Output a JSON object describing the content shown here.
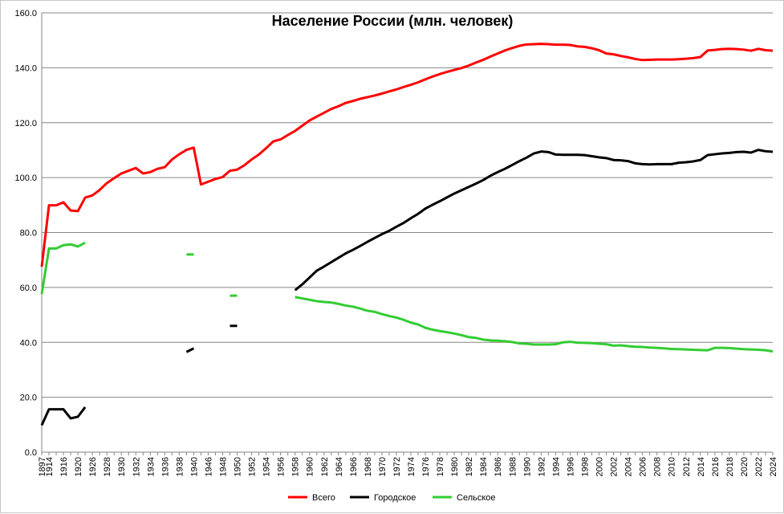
{
  "chart_data": {
    "type": "line",
    "title": "Население России (млн. человек)",
    "xlabel": "",
    "ylabel": "",
    "ylim": [
      0,
      160
    ],
    "y_ticks": [
      "0.0",
      "20.0",
      "40.0",
      "60.0",
      "80.0",
      "100.0",
      "120.0",
      "140.0",
      "160.0"
    ],
    "grid": true,
    "legend": "bottom",
    "categories": [
      "1897",
      "1914",
      "1915",
      "1916",
      "1917",
      "1920",
      "1923",
      "1926",
      "1927",
      "1928",
      "1929",
      "1930",
      "1931",
      "1932",
      "1933",
      "1934",
      "1935",
      "1936",
      "1937",
      "1938",
      "1939",
      "1940",
      "1941",
      "1946",
      "1947",
      "1948",
      "1949",
      "1950",
      "1951",
      "1952",
      "1953",
      "1954",
      "1955",
      "1956",
      "1957",
      "1958",
      "1959",
      "1960",
      "1961",
      "1962",
      "1963",
      "1964",
      "1965",
      "1966",
      "1967",
      "1968",
      "1969",
      "1970",
      "1971",
      "1972",
      "1973",
      "1974",
      "1975",
      "1976",
      "1977",
      "1978",
      "1979",
      "1980",
      "1981",
      "1982",
      "1983",
      "1984",
      "1985",
      "1986",
      "1987",
      "1988",
      "1989",
      "1990",
      "1991",
      "1992",
      "1993",
      "1994",
      "1995",
      "1996",
      "1997",
      "1998",
      "1999",
      "2000",
      "2001",
      "2002",
      "2003",
      "2004",
      "2005",
      "2006",
      "2007",
      "2008",
      "2009",
      "2010",
      "2011",
      "2012",
      "2013",
      "2014",
      "2015",
      "2016",
      "2017",
      "2018",
      "2019",
      "2020",
      "2021",
      "2022",
      "2023",
      "2024"
    ],
    "tick_labels": [
      "1897",
      "1914",
      "1916",
      "1920",
      "1926",
      "1928",
      "1930",
      "1932",
      "1934",
      "1936",
      "1938",
      "1940",
      "1946",
      "1948",
      "1950",
      "1952",
      "1954",
      "1956",
      "1958",
      "1960",
      "1962",
      "1964",
      "1966",
      "1968",
      "1970",
      "1972",
      "1974",
      "1976",
      "1978",
      "1980",
      "1982",
      "1984",
      "1986",
      "1988",
      "1990",
      "1992",
      "1994",
      "1996",
      "1998",
      "2000",
      "2002",
      "2004",
      "2006",
      "2008",
      "2010",
      "2012",
      "2014",
      "2016",
      "2018",
      "2020",
      "2022",
      "2024"
    ],
    "series": [
      {
        "name": "Всего",
        "color": "#ff0000",
        "values": [
          67.5,
          89.9,
          89.9,
          91.0,
          88.0,
          87.8,
          92.7,
          93.5,
          95.5,
          98.0,
          99.8,
          101.5,
          102.5,
          103.5,
          101.5,
          102.0,
          103.2,
          103.8,
          106.6,
          108.5,
          110.1,
          110.9,
          97.5,
          98.5,
          99.5,
          100.2,
          102.5,
          102.9,
          104.5,
          106.6,
          108.4,
          110.7,
          113.2,
          113.9,
          115.5,
          117.0,
          118.9,
          120.8,
          122.2,
          123.6,
          125.0,
          126.0,
          127.2,
          127.9,
          128.7,
          129.3,
          129.9,
          130.6,
          131.4,
          132.1,
          133.0,
          133.8,
          134.7,
          135.8,
          136.8,
          137.7,
          138.5,
          139.2,
          139.9,
          140.8,
          141.9,
          142.9,
          144.1,
          145.2,
          146.3,
          147.2,
          148.0,
          148.5,
          148.6,
          148.7,
          148.6,
          148.4,
          148.4,
          148.3,
          147.8,
          147.6,
          147.1,
          146.4,
          145.2,
          144.9,
          144.3,
          143.8,
          143.2,
          142.8,
          142.9,
          143.0,
          143.0,
          143.0,
          143.1,
          143.3,
          143.5,
          143.9,
          146.3,
          146.5,
          146.8,
          146.9,
          146.8,
          146.6,
          146.2,
          146.9,
          146.4,
          146.2
        ]
      },
      {
        "name": "Городское",
        "color": "#000000",
        "values": [
          9.8,
          15.6,
          15.6,
          15.6,
          12.3,
          12.9,
          16.4,
          null,
          null,
          null,
          null,
          null,
          null,
          null,
          null,
          null,
          null,
          null,
          null,
          null,
          36.5,
          37.8,
          null,
          null,
          null,
          null,
          46.0,
          46.0,
          null,
          null,
          null,
          null,
          null,
          null,
          null,
          59.0,
          61.1,
          63.6,
          66.1,
          67.6,
          69.2,
          70.8,
          72.4,
          73.7,
          75.1,
          76.6,
          78.0,
          79.4,
          80.6,
          82.1,
          83.5,
          85.2,
          86.8,
          88.7,
          90.1,
          91.4,
          92.8,
          94.2,
          95.4,
          96.6,
          97.8,
          99.1,
          100.7,
          102.0,
          103.2,
          104.6,
          106.0,
          107.3,
          108.8,
          109.5,
          109.3,
          108.4,
          108.3,
          108.3,
          108.3,
          108.2,
          107.8,
          107.4,
          107.1,
          106.4,
          106.3,
          106.0,
          105.2,
          104.9,
          104.8,
          104.9,
          104.9,
          104.9,
          105.4,
          105.6,
          105.9,
          106.4,
          108.2,
          108.5,
          108.8,
          109.0,
          109.3,
          109.4,
          109.1,
          110.1,
          109.6,
          109.4
        ]
      },
      {
        "name": "Сельское",
        "color": "#33cc33",
        "values": [
          57.6,
          74.2,
          74.2,
          75.4,
          75.7,
          74.9,
          76.3,
          null,
          null,
          null,
          null,
          null,
          null,
          null,
          null,
          null,
          null,
          null,
          null,
          null,
          72.0,
          72.0,
          null,
          null,
          null,
          null,
          57.0,
          57.0,
          null,
          null,
          null,
          null,
          null,
          null,
          null,
          56.5,
          56.0,
          55.5,
          55.0,
          54.7,
          54.5,
          54.0,
          53.4,
          53.0,
          52.3,
          51.5,
          51.1,
          50.3,
          49.6,
          49.0,
          48.2,
          47.2,
          46.5,
          45.3,
          44.6,
          44.1,
          43.7,
          43.2,
          42.6,
          41.9,
          41.6,
          41.0,
          40.7,
          40.6,
          40.4,
          40.1,
          39.6,
          39.5,
          39.2,
          39.2,
          39.2,
          39.3,
          40.0,
          40.2,
          39.9,
          39.8,
          39.7,
          39.5,
          39.3,
          38.8,
          38.9,
          38.6,
          38.4,
          38.3,
          38.1,
          38.0,
          37.8,
          37.6,
          37.5,
          37.4,
          37.3,
          37.2,
          37.1,
          38.0,
          38.0,
          37.9,
          37.7,
          37.5,
          37.4,
          37.3,
          37.1,
          36.7
        ]
      }
    ]
  }
}
